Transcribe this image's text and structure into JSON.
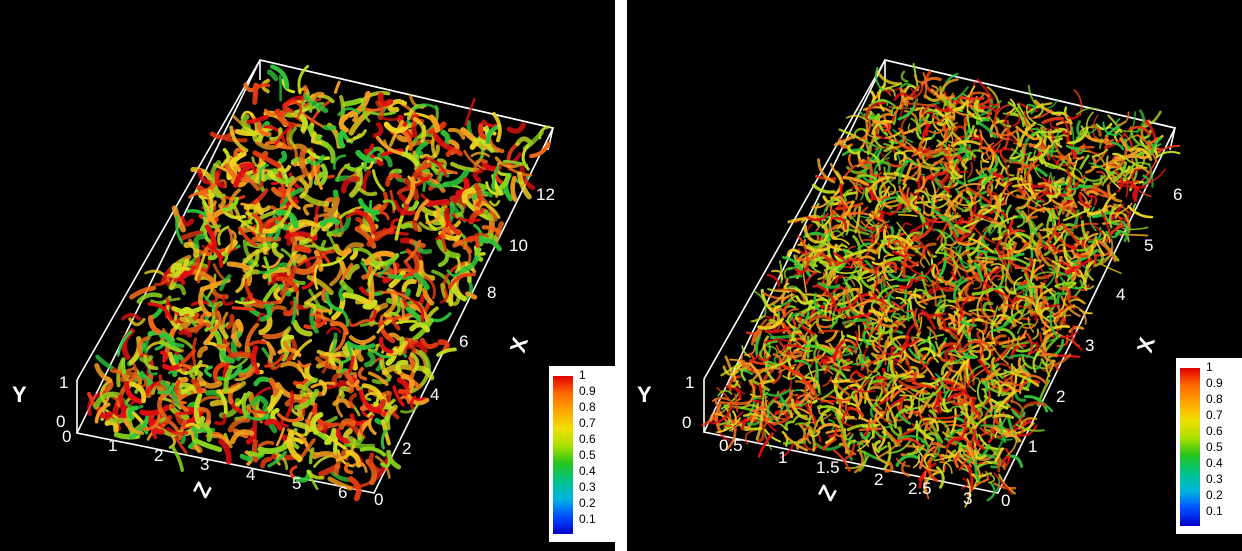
{
  "panels": [
    {
      "y_label": "Y",
      "z_label": "Z",
      "x_label": "X",
      "y_ticks": [
        "0",
        "1"
      ],
      "z_ticks": [
        "0",
        "1",
        "2",
        "3",
        "4",
        "5",
        "6"
      ],
      "x_ticks": [
        "0",
        "2",
        "4",
        "6",
        "8",
        "10",
        "12"
      ]
    },
    {
      "y_label": "Y",
      "z_label": "Z",
      "x_label": "X",
      "y_ticks": [
        "0",
        "1"
      ],
      "z_ticks": [
        "0.5",
        "1",
        "1.5",
        "2",
        "2.5",
        "3"
      ],
      "x_ticks": [
        "0",
        "1",
        "2",
        "3",
        "4",
        "5",
        "6"
      ]
    }
  ],
  "legend": {
    "ticks": [
      "1",
      "0.9",
      "0.8",
      "0.7",
      "0.6",
      "0.5",
      "0.4",
      "0.3",
      "0.2",
      "0.1"
    ],
    "colors": [
      "#e00000",
      "#ff6a00",
      "#ffa500",
      "#f0e000",
      "#a8e000",
      "#22c41e",
      "#00c48c",
      "#00b4e0",
      "#0050ff",
      "#0000c8"
    ]
  }
}
